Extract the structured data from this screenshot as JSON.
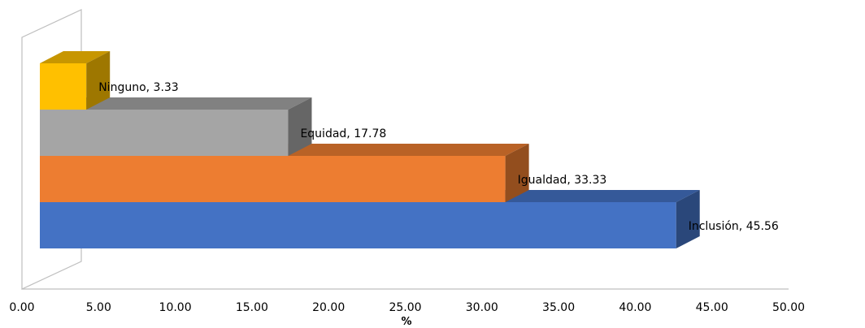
{
  "chart_data": {
    "type": "bar",
    "orientation": "horizontal",
    "three_d": true,
    "categories": [
      "Inclusión",
      "Igualdad",
      "Equidad",
      "Ninguno"
    ],
    "values": [
      45.56,
      33.33,
      17.78,
      3.33
    ],
    "data_labels": [
      "Inclusión, 45.56",
      "Igualdad, 33.33",
      "Equidad, 17.78",
      "Ninguno, 3.33"
    ],
    "colors": [
      "#4472C4",
      "#ED7D31",
      "#A5A5A5",
      "#FFC000"
    ],
    "xlabel": "%",
    "ylabel": "",
    "xlim": [
      0,
      50
    ],
    "x_ticks": [
      "0.00",
      "5.00",
      "10.00",
      "15.00",
      "20.00",
      "25.00",
      "30.00",
      "35.00",
      "40.00",
      "45.00",
      "50.00"
    ],
    "grid": false,
    "legend": "none"
  }
}
